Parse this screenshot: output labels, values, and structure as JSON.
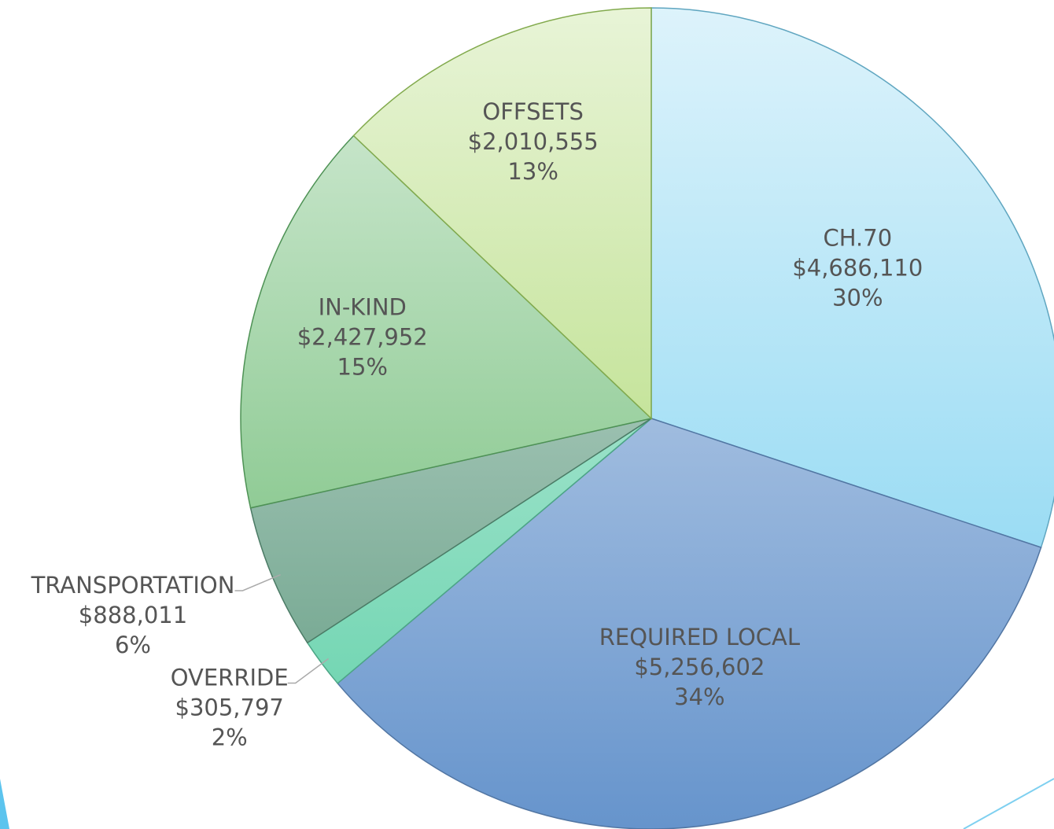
{
  "chart_data": {
    "type": "pie",
    "categories": [
      "CH.70",
      "REQUIRED LOCAL",
      "OVERRIDE",
      "TRANSPORTATION",
      "IN-KIND",
      "OFFSETS"
    ],
    "values": [
      4686110,
      5256602,
      305797,
      888011,
      2427952,
      2010555
    ],
    "value_labels": [
      "$4,686,110",
      "$5,256,602",
      "$305,797",
      "$888,011",
      "$2,427,952",
      "$2,010,555"
    ],
    "percent_labels": [
      "30%",
      "34%",
      "2%",
      "6%",
      "15%",
      "13%"
    ],
    "colors": [
      "#78d0f0",
      "#6694cc",
      "#5fd0a8",
      "#5f9a80",
      "#62b66a",
      "#a3d460"
    ]
  }
}
